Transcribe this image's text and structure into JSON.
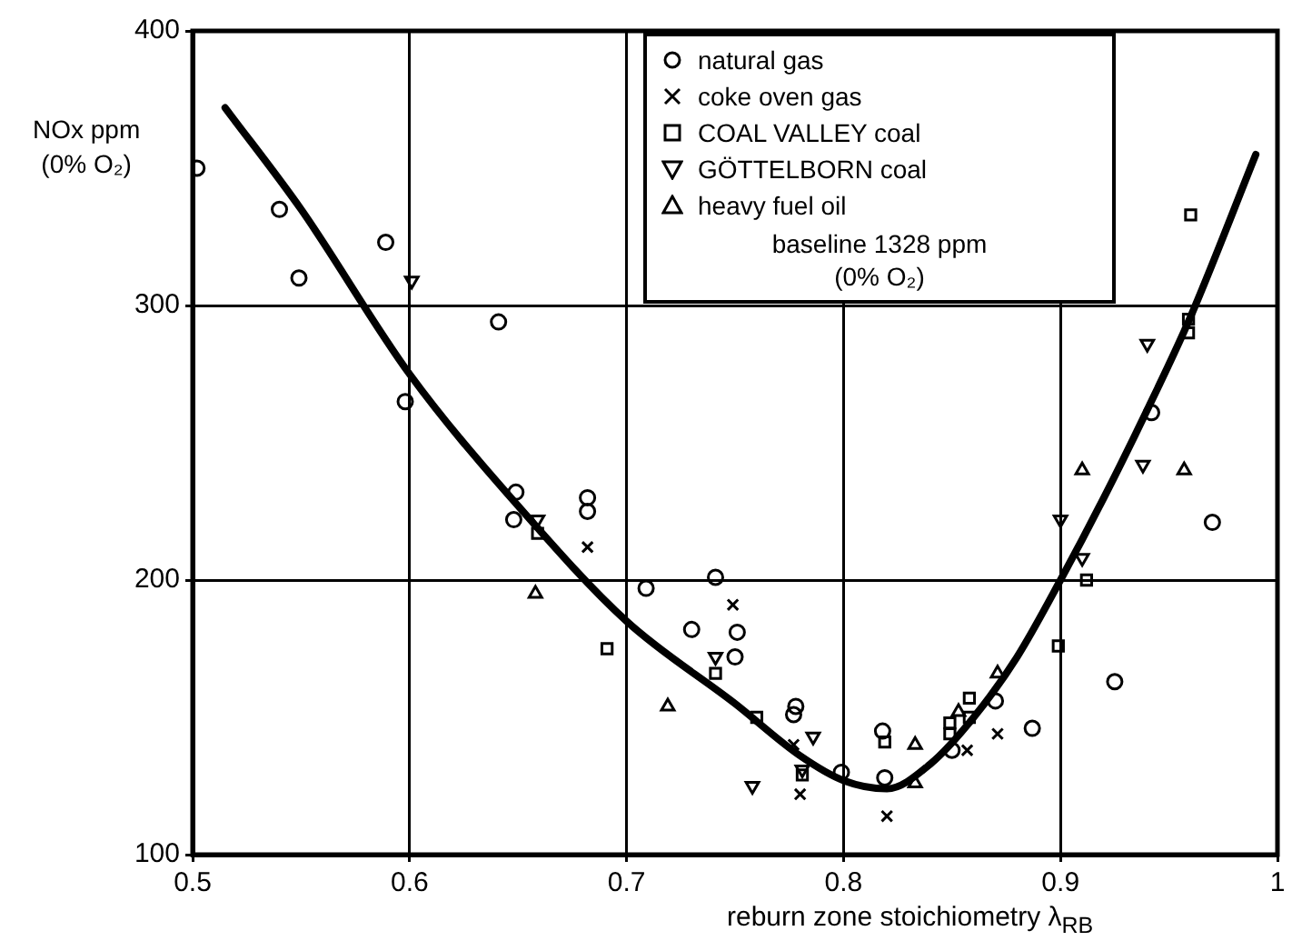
{
  "chart_data": {
    "type": "scatter",
    "xlabel": "reburn zone stoichiometry λ$_{RB}$",
    "ylabel": "NOx ppm\n(0% O₂)",
    "xlim": [
      0.5,
      1.0
    ],
    "xticks": [
      0.5,
      0.6,
      0.7,
      0.8,
      0.9,
      1.0
    ],
    "ylim": [
      100,
      400
    ],
    "yticks": [
      100,
      200,
      300,
      400
    ],
    "grid": true,
    "legend": "top right",
    "annotations": [
      "baseline 1328 ppm\n(0% O₂)"
    ],
    "series": [
      {
        "name": "natural gas",
        "color": "#000000",
        "marker": "circle",
        "x": [
          0.502,
          0.54,
          0.549,
          0.589,
          0.598,
          0.641,
          0.649,
          0.648,
          0.682,
          0.682,
          0.709,
          0.741,
          0.73,
          0.751,
          0.75,
          0.778,
          0.777,
          0.799,
          0.818,
          0.819,
          0.85,
          0.87,
          0.887,
          0.925,
          0.942,
          0.97
        ],
        "values": [
          350,
          335,
          310,
          323,
          265,
          294,
          232,
          222,
          230,
          225,
          197,
          201,
          182,
          181,
          172,
          154,
          151,
          130,
          145,
          128,
          138,
          156,
          146,
          163,
          261,
          221
        ]
      },
      {
        "name": "coke oven gas",
        "color": "#000000",
        "marker": "cross",
        "x": [
          0.682,
          0.749,
          0.777,
          0.78,
          0.82,
          0.857,
          0.871
        ],
        "values": [
          212,
          191,
          140,
          122,
          114,
          138,
          144
        ]
      },
      {
        "name": "COAL VALLEY coal",
        "color": "#000000",
        "marker": "square",
        "x": [
          0.659,
          0.691,
          0.741,
          0.76,
          0.781,
          0.819,
          0.849,
          0.849,
          0.858,
          0.858,
          0.899,
          0.912,
          0.959,
          0.959,
          0.96
        ],
        "values": [
          217,
          175,
          166,
          150,
          129,
          141,
          144,
          148,
          157,
          150,
          176,
          200,
          295,
          290,
          333
        ]
      },
      {
        "name": "GÖTTELBORN coal",
        "color": "#000000",
        "marker": "triangle_down",
        "x": [
          0.601,
          0.659,
          0.741,
          0.786,
          0.758,
          0.781,
          0.9,
          0.91,
          0.938,
          0.94
        ],
        "values": [
          309,
          222,
          172,
          143,
          125,
          131,
          222,
          208,
          242,
          286
        ]
      },
      {
        "name": "heavy fuel oil",
        "color": "#000000",
        "marker": "triangle",
        "x": [
          0.658,
          0.719,
          0.833,
          0.833,
          0.853,
          0.871,
          0.91,
          0.957
        ],
        "values": [
          195,
          154,
          140,
          126,
          152,
          166,
          240,
          240
        ]
      },
      {
        "type": "line",
        "color": "#000000",
        "marker": "none",
        "x": [
          0.515,
          0.55,
          0.6,
          0.65,
          0.7,
          0.75,
          0.78,
          0.8,
          0.82,
          0.84,
          0.86,
          0.88,
          0.9,
          0.92,
          0.94,
          0.96,
          0.99
        ],
        "values": [
          372,
          335,
          275,
          227,
          185,
          155,
          136,
          127,
          124,
          133,
          150,
          172,
          200,
          230,
          262,
          296,
          355
        ]
      }
    ]
  }
}
